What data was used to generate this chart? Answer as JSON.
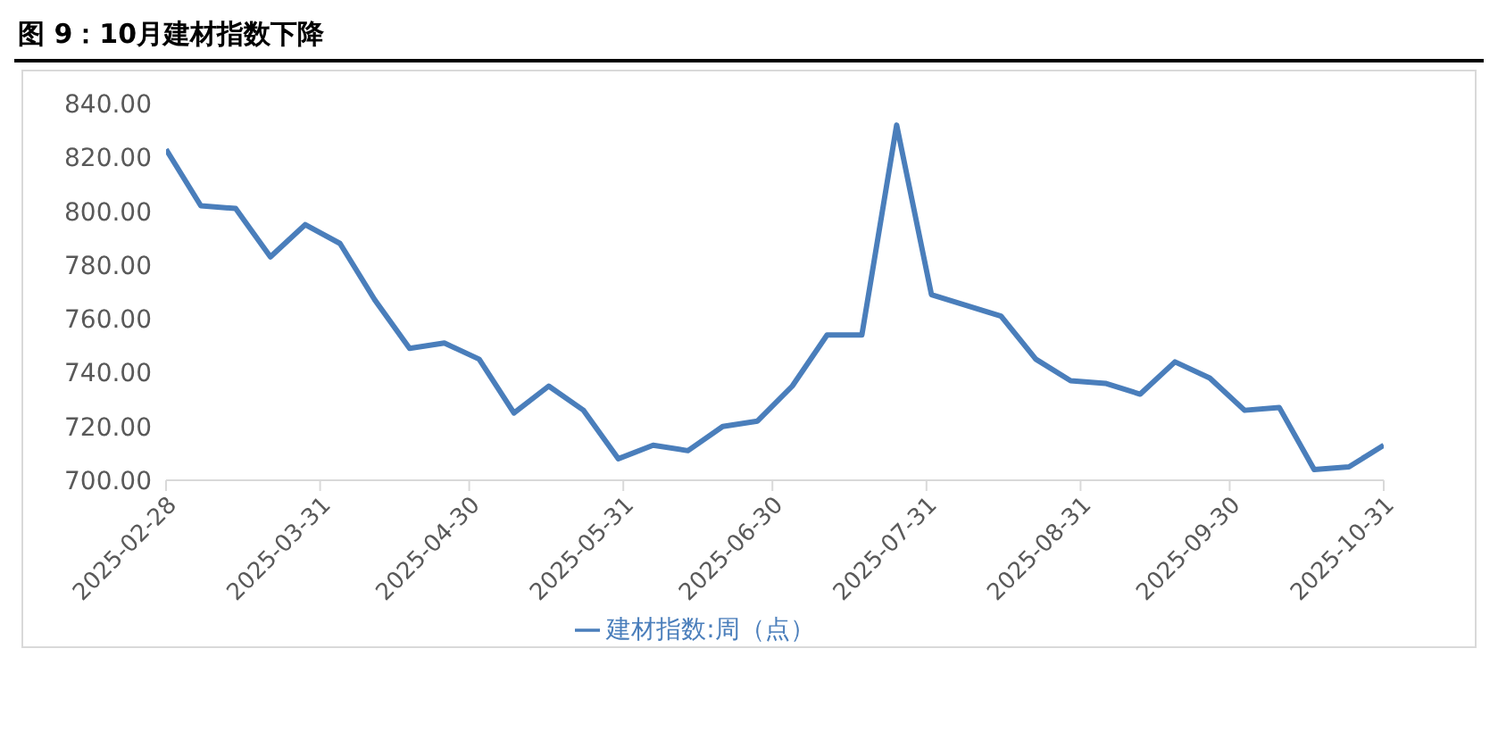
{
  "chart_data": {
    "type": "line",
    "title": "图 9：10月建材指数下降",
    "x": [
      "2025-02-28",
      "2025-03-07",
      "2025-03-14",
      "2025-03-21",
      "2025-03-28",
      "2025-04-04",
      "2025-04-11",
      "2025-04-18",
      "2025-04-25",
      "2025-05-02",
      "2025-05-09",
      "2025-05-16",
      "2025-05-23",
      "2025-05-30",
      "2025-06-06",
      "2025-06-13",
      "2025-06-20",
      "2025-06-27",
      "2025-07-04",
      "2025-07-11",
      "2025-07-18",
      "2025-07-25",
      "2025-08-01",
      "2025-08-08",
      "2025-08-15",
      "2025-08-22",
      "2025-08-29",
      "2025-09-05",
      "2025-09-12",
      "2025-09-19",
      "2025-09-26",
      "2025-10-03",
      "2025-10-10",
      "2025-10-17",
      "2025-10-24",
      "2025-10-31"
    ],
    "series": [
      {
        "name": "建材指数:周（点）",
        "color": "#4a7ebb",
        "values": [
          823,
          802,
          801,
          783,
          795,
          788,
          767,
          749,
          751,
          745,
          725,
          735,
          726,
          708,
          713,
          711,
          720,
          722,
          735,
          754,
          754,
          832,
          769,
          765,
          761,
          745,
          737,
          736,
          732,
          744,
          738,
          726,
          727,
          704,
          705,
          713
        ]
      }
    ],
    "xlim": [
      "2025-02-28",
      "2025-10-31"
    ],
    "xticks": [
      "2025-02-28",
      "2025-03-31",
      "2025-04-30",
      "2025-05-31",
      "2025-06-30",
      "2025-07-31",
      "2025-08-31",
      "2025-09-30",
      "2025-10-31"
    ],
    "ylim": [
      700,
      840
    ],
    "yticks": [
      {
        "value": 700,
        "label": "700.00"
      },
      {
        "value": 720,
        "label": "720.00"
      },
      {
        "value": 740,
        "label": "740.00"
      },
      {
        "value": 760,
        "label": "760.00"
      },
      {
        "value": 780,
        "label": "780.00"
      },
      {
        "value": 800,
        "label": "800.00"
      },
      {
        "value": 820,
        "label": "820.00"
      },
      {
        "value": 840,
        "label": "840.00"
      }
    ],
    "grid": false,
    "legend": "bottom",
    "marker": "none",
    "line_style": "solid"
  }
}
